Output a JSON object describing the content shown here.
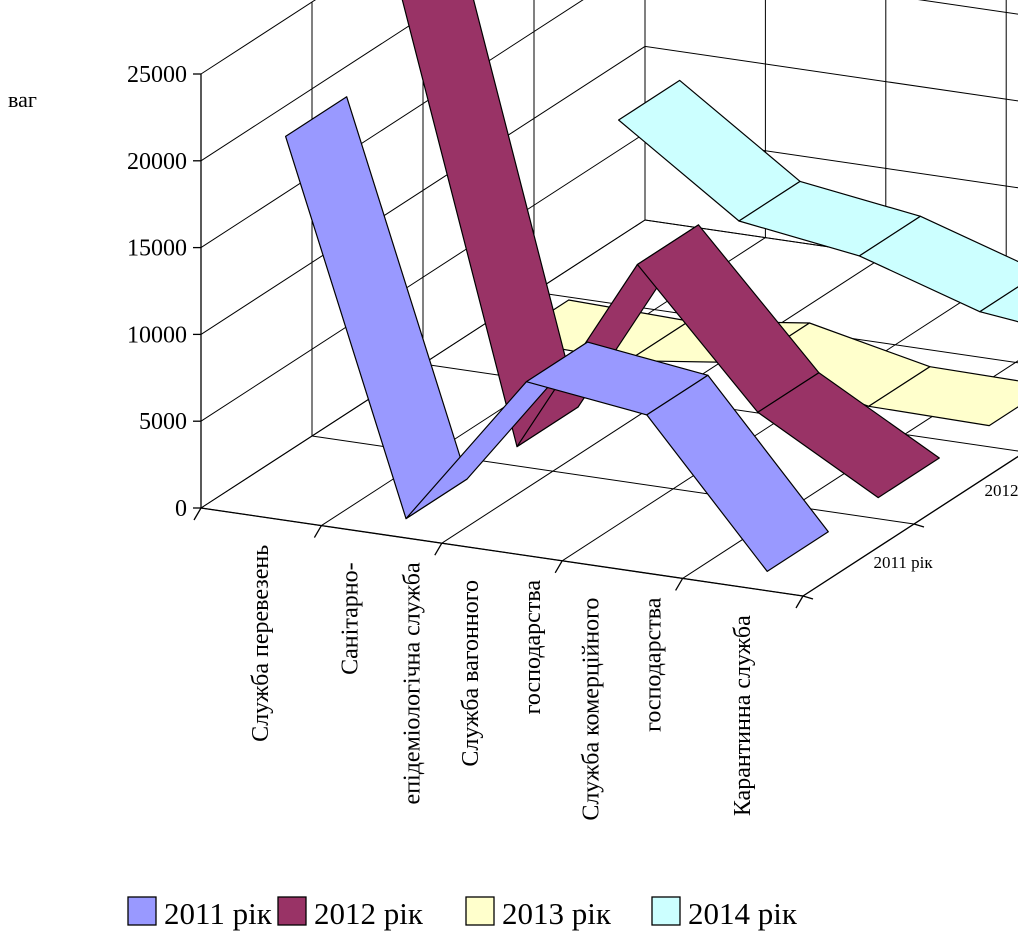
{
  "chart_data": {
    "type": "line",
    "style": "3d-ribbon",
    "ylabel": "ваг",
    "ylim": [
      0,
      25000
    ],
    "yticks": [
      "0",
      "5000",
      "10000",
      "15000",
      "20000",
      "25000"
    ],
    "categories": [
      [
        "Служба перевезень"
      ],
      [
        "Санітарно-",
        "епідеміологічна служба"
      ],
      [
        "Служба вагонного",
        "господарства"
      ],
      [
        "Служба комерційного",
        "господарства"
      ],
      [
        "Карантинна служба"
      ]
    ],
    "series": [
      {
        "name": "2011 рік",
        "color": "#9999ff",
        "values": [
          21000,
          0,
          8900,
          8000,
          0
        ]
      },
      {
        "name": "2012 рік",
        "color": "#993366",
        "values": [
          26000,
          0,
          11500,
          4000,
          100
        ]
      },
      {
        "name": "2013 рік",
        "color": "#ffffcc",
        "values": [
          1000,
          800,
          1700,
          200,
          100
        ]
      },
      {
        "name": "2014 рік",
        "color": "#ccffff",
        "values": [
          9500,
          4700,
          3700,
          1500,
          700
        ]
      }
    ],
    "legend_position": "bottom",
    "grid": true
  }
}
